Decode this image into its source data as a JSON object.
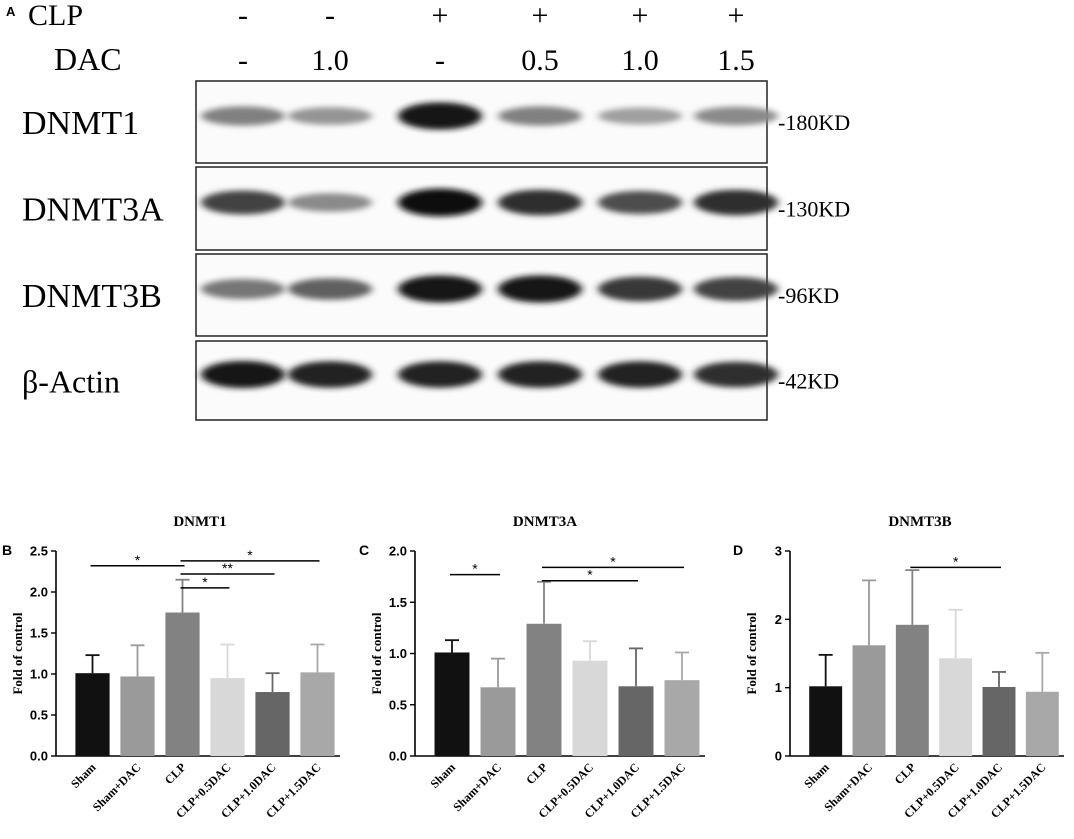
{
  "panel_letters": {
    "a": "A",
    "b": "B",
    "c": "C",
    "d": "D"
  },
  "blot": {
    "conditions": [
      {
        "label": "CLP",
        "values": [
          "-",
          "-",
          "+",
          "+",
          "+",
          "+"
        ]
      },
      {
        "label": "DAC",
        "values": [
          "-",
          "1.0",
          "-",
          "0.5",
          "1.0",
          "1.5"
        ]
      }
    ],
    "proteins": [
      {
        "name": "DNMT1",
        "size": "-180KD",
        "intensity": [
          0.45,
          0.35,
          0.95,
          0.45,
          0.3,
          0.4
        ]
      },
      {
        "name": "DNMT3A",
        "size": "-130KD",
        "intensity": [
          0.75,
          0.4,
          1.0,
          0.85,
          0.7,
          0.85
        ]
      },
      {
        "name": "DNMT3B",
        "size": "-96KD",
        "intensity": [
          0.5,
          0.6,
          0.95,
          0.95,
          0.8,
          0.75
        ]
      },
      {
        "name": "β-Actin",
        "size": "-42KD",
        "intensity": [
          0.95,
          0.9,
          0.9,
          0.9,
          0.9,
          0.85
        ]
      }
    ]
  },
  "chart_data": [
    {
      "type": "bar",
      "title": "DNMT1",
      "ylabel": "Fold of control",
      "categories": [
        "Sham",
        "Sham+DAC",
        "CLP",
        "CLP+0.5DAC",
        "CLP+1.0DAC",
        "CLP+1.5DAC"
      ],
      "values": [
        1.01,
        0.97,
        1.75,
        0.95,
        0.78,
        1.02
      ],
      "errors": [
        0.22,
        0.38,
        0.4,
        0.41,
        0.23,
        0.34
      ],
      "ylim": [
        0,
        2.5
      ],
      "yticks": [
        "0.0",
        "0.5",
        "1.0",
        "1.5",
        "2.0",
        "2.5"
      ],
      "colors": [
        "#111111",
        "#9a9a9a",
        "#828282",
        "#d8d8d8",
        "#666666",
        "#a8a8a8"
      ],
      "significance": [
        {
          "from": 0,
          "to": 2,
          "y": 2.32,
          "label": "*"
        },
        {
          "from": 2,
          "to": 3,
          "y": 2.05,
          "label": "*"
        },
        {
          "from": 2,
          "to": 4,
          "y": 2.22,
          "label": "**"
        },
        {
          "from": 2,
          "to": 5,
          "y": 2.38,
          "label": "*"
        }
      ]
    },
    {
      "type": "bar",
      "title": "DNMT3A",
      "ylabel": "Fold of control",
      "categories": [
        "Sham",
        "Sham+DAC",
        "CLP",
        "CLP+0.5DAC",
        "CLP+1.0DAC",
        "CLP+1.5DAC"
      ],
      "values": [
        1.01,
        0.67,
        1.29,
        0.93,
        0.68,
        0.74
      ],
      "errors": [
        0.12,
        0.28,
        0.41,
        0.19,
        0.37,
        0.27
      ],
      "ylim": [
        0,
        2.0
      ],
      "yticks": [
        "0.0",
        "0.5",
        "1.0",
        "1.5",
        "2.0"
      ],
      "colors": [
        "#111111",
        "#9a9a9a",
        "#828282",
        "#d8d8d8",
        "#666666",
        "#a8a8a8"
      ],
      "significance": [
        {
          "from": 0,
          "to": 1,
          "y": 1.77,
          "label": "*"
        },
        {
          "from": 2,
          "to": 4,
          "y": 1.71,
          "label": "*"
        },
        {
          "from": 2,
          "to": 5,
          "y": 1.84,
          "label": "*"
        }
      ]
    },
    {
      "type": "bar",
      "title": "DNMT3B",
      "ylabel": "Fold of control",
      "categories": [
        "Sham",
        "Sham+DAC",
        "CLP",
        "CLP+0.5DAC",
        "CLP+1.0DAC",
        "CLP+1.5DAC"
      ],
      "values": [
        1.02,
        1.62,
        1.92,
        1.43,
        1.01,
        0.94
      ],
      "errors": [
        0.46,
        0.95,
        0.8,
        0.71,
        0.22,
        0.57
      ],
      "ylim": [
        0,
        3
      ],
      "yticks": [
        "0",
        "1",
        "2",
        "3"
      ],
      "colors": [
        "#111111",
        "#9a9a9a",
        "#828282",
        "#d8d8d8",
        "#666666",
        "#a8a8a8"
      ],
      "significance": [
        {
          "from": 2,
          "to": 4,
          "y": 2.76,
          "label": "*"
        }
      ]
    }
  ]
}
